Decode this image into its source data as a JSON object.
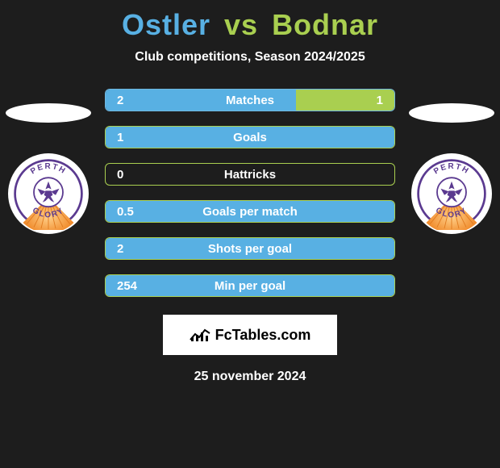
{
  "colors": {
    "background": "#1d1d1d",
    "title_left": "#58b0e3",
    "title_right": "#a9cf50",
    "subtitle": "#ffffff",
    "stat_text": "#ffffff",
    "footer_bg": "#ffffff",
    "footer_text": "#000000",
    "badge_purple": "#5b3a90",
    "badge_orange": "#f08a2a"
  },
  "title": {
    "left": "Ostler",
    "vs": "vs",
    "right": "Bodnar"
  },
  "subtitle": "Club competitions, Season 2024/2025",
  "stats": [
    {
      "label": "Matches",
      "left_val": "2",
      "right_val": "1",
      "left_fill_pct": 66,
      "right_fill_pct": 34,
      "left_color": "#58b0e3",
      "right_color": "#a9cf50",
      "border_color": "#6fb7df"
    },
    {
      "label": "Goals",
      "left_val": "1",
      "right_val": "",
      "left_fill_pct": 100,
      "right_fill_pct": 0,
      "left_color": "#58b0e3",
      "right_color": "#a9cf50",
      "border_color": "#a9cf50"
    },
    {
      "label": "Hattricks",
      "left_val": "0",
      "right_val": "",
      "left_fill_pct": 0,
      "right_fill_pct": 0,
      "left_color": "#58b0e3",
      "right_color": "#a9cf50",
      "border_color": "#a9cf50"
    },
    {
      "label": "Goals per match",
      "left_val": "0.5",
      "right_val": "",
      "left_fill_pct": 100,
      "right_fill_pct": 0,
      "left_color": "#58b0e3",
      "right_color": "#a9cf50",
      "border_color": "#a9cf50"
    },
    {
      "label": "Shots per goal",
      "left_val": "2",
      "right_val": "",
      "left_fill_pct": 100,
      "right_fill_pct": 0,
      "left_color": "#58b0e3",
      "right_color": "#a9cf50",
      "border_color": "#a9cf50"
    },
    {
      "label": "Min per goal",
      "left_val": "254",
      "right_val": "",
      "left_fill_pct": 100,
      "right_fill_pct": 0,
      "left_color": "#58b0e3",
      "right_color": "#a9cf50",
      "border_color": "#a9cf50"
    }
  ],
  "club": {
    "name_top": "PERTH",
    "name_bottom": "GLORY"
  },
  "footer": {
    "brand_prefix": "Fc",
    "brand_suffix": "Tables.com",
    "date": "25 november 2024"
  }
}
